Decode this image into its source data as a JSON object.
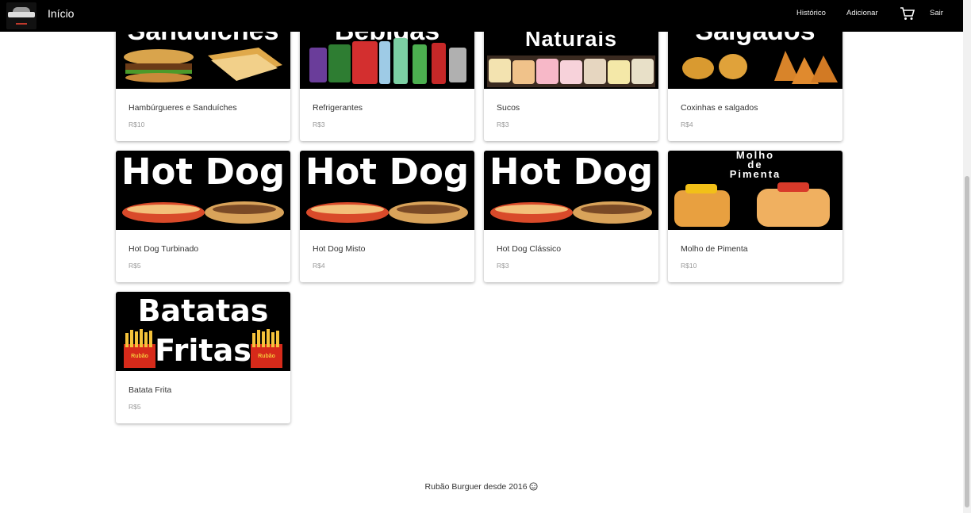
{
  "header": {
    "title": "Início",
    "nav": {
      "history": "Histórico",
      "add": "Adicionar",
      "logout": "Sair"
    },
    "icons": {
      "cart": "cart-icon",
      "logo": "logo-icon"
    }
  },
  "products": [
    {
      "name": "Hambúrgueres e Sanduíches",
      "price": "R$10",
      "image_text": "Sanduíches"
    },
    {
      "name": "Refrigerantes",
      "price": "R$3",
      "image_text": "Bebidas"
    },
    {
      "name": "Sucos",
      "price": "R$3",
      "image_text": "Naturais"
    },
    {
      "name": "Coxinhas e salgados",
      "price": "R$4",
      "image_text": "Salgados"
    },
    {
      "name": "Hot Dog Turbinado",
      "price": "R$5",
      "image_text": "Hot Dog"
    },
    {
      "name": "Hot Dog Misto",
      "price": "R$4",
      "image_text": "Hot Dog"
    },
    {
      "name": "Hot Dog Clássico",
      "price": "R$3",
      "image_text": "Hot Dog"
    },
    {
      "name": "Molho de Pimenta",
      "price": "R$10",
      "image_text": [
        "Molho",
        "de",
        "Pimenta"
      ]
    },
    {
      "name": "Batata Frita",
      "price": "R$5",
      "image_text": [
        "Batatas",
        "Fritas"
      ],
      "image_badge": "Rubão"
    }
  ],
  "footer": {
    "text": "Rubão Burguer desde 2016",
    "icon": "smile-icon"
  },
  "colors": {
    "header_bg": "#000000",
    "page_bg": "#ffffff",
    "price": "#999999"
  }
}
